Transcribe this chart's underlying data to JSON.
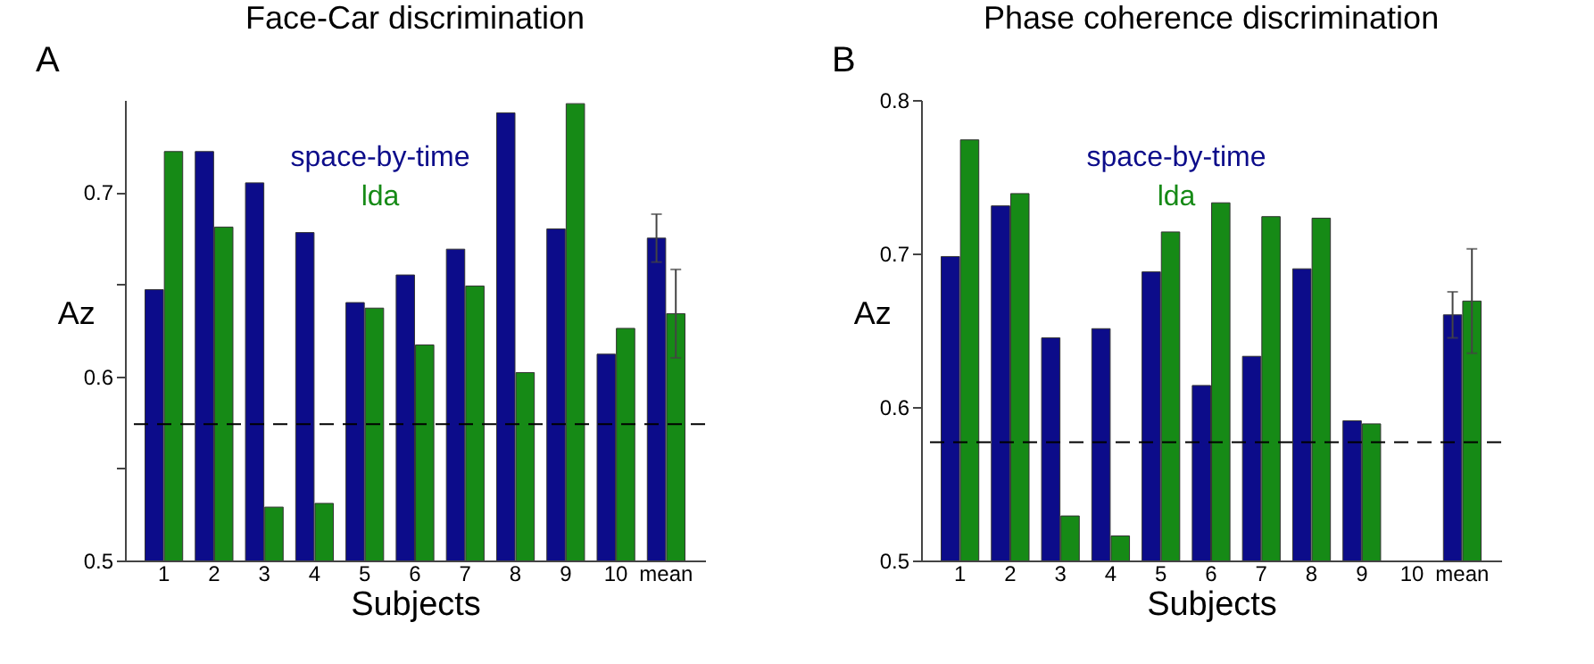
{
  "chart_data": [
    {
      "type": "bar",
      "title": "Face-Car discrimination",
      "xlabel": "Subjects",
      "ylabel": "Az",
      "annotations": [
        "A"
      ],
      "categories": [
        "1",
        "2",
        "3",
        "4",
        "5",
        "6",
        "7",
        "8",
        "9",
        "10",
        "mean"
      ],
      "series": [
        {
          "name": "space-by-time",
          "color": "#0c0c8a",
          "values": [
            0.647,
            0.722,
            0.705,
            0.678,
            0.64,
            0.655,
            0.669,
            0.743,
            0.68,
            0.612,
            0.675
          ],
          "errors": [
            null,
            null,
            null,
            null,
            null,
            null,
            null,
            null,
            null,
            null,
            0.013
          ]
        },
        {
          "name": "lda",
          "color": "#168a16",
          "values": [
            0.722,
            0.681,
            0.529,
            0.531,
            0.637,
            0.617,
            0.649,
            0.602,
            0.748,
            0.626,
            0.634
          ],
          "errors": [
            null,
            null,
            null,
            null,
            null,
            null,
            null,
            null,
            null,
            null,
            0.024
          ]
        }
      ],
      "ylim": [
        0.5,
        0.75
      ],
      "yticks": [
        0.5,
        {
          "value": 0.55,
          "label": null
        },
        0.6,
        {
          "value": 0.65,
          "label": null
        },
        0.7
      ],
      "ref_lines": [
        {
          "axis": "y",
          "value": 0.574,
          "color": "#000000",
          "line_style": "dashed"
        }
      ],
      "grid": false,
      "legend": "top"
    },
    {
      "type": "bar",
      "title": "Phase coherence discrimination",
      "xlabel": "Subjects",
      "ylabel": "Az",
      "annotations": [
        "B"
      ],
      "categories": [
        "1",
        "2",
        "3",
        "4",
        "5",
        "6",
        "7",
        "8",
        "9",
        "10",
        "mean"
      ],
      "series": [
        {
          "name": "space-by-time",
          "color": "#0c0c8a",
          "values": [
            0.698,
            0.731,
            0.645,
            0.651,
            0.688,
            0.614,
            0.633,
            0.69,
            0.591,
            null,
            0.66
          ],
          "errors": [
            null,
            null,
            null,
            null,
            null,
            null,
            null,
            null,
            null,
            null,
            0.015
          ]
        },
        {
          "name": "lda",
          "color": "#168a16",
          "values": [
            0.774,
            0.739,
            0.529,
            0.516,
            0.714,
            0.733,
            0.724,
            0.723,
            0.589,
            null,
            0.669
          ],
          "errors": [
            null,
            null,
            null,
            null,
            null,
            null,
            null,
            null,
            null,
            null,
            0.034
          ]
        }
      ],
      "ylim": [
        0.5,
        0.8
      ],
      "yticks": [
        0.5,
        0.6,
        0.7,
        0.8
      ],
      "ref_lines": [
        {
          "axis": "y",
          "value": 0.577,
          "color": "#000000",
          "line_style": "dashed"
        }
      ],
      "grid": false,
      "legend": "top"
    }
  ]
}
